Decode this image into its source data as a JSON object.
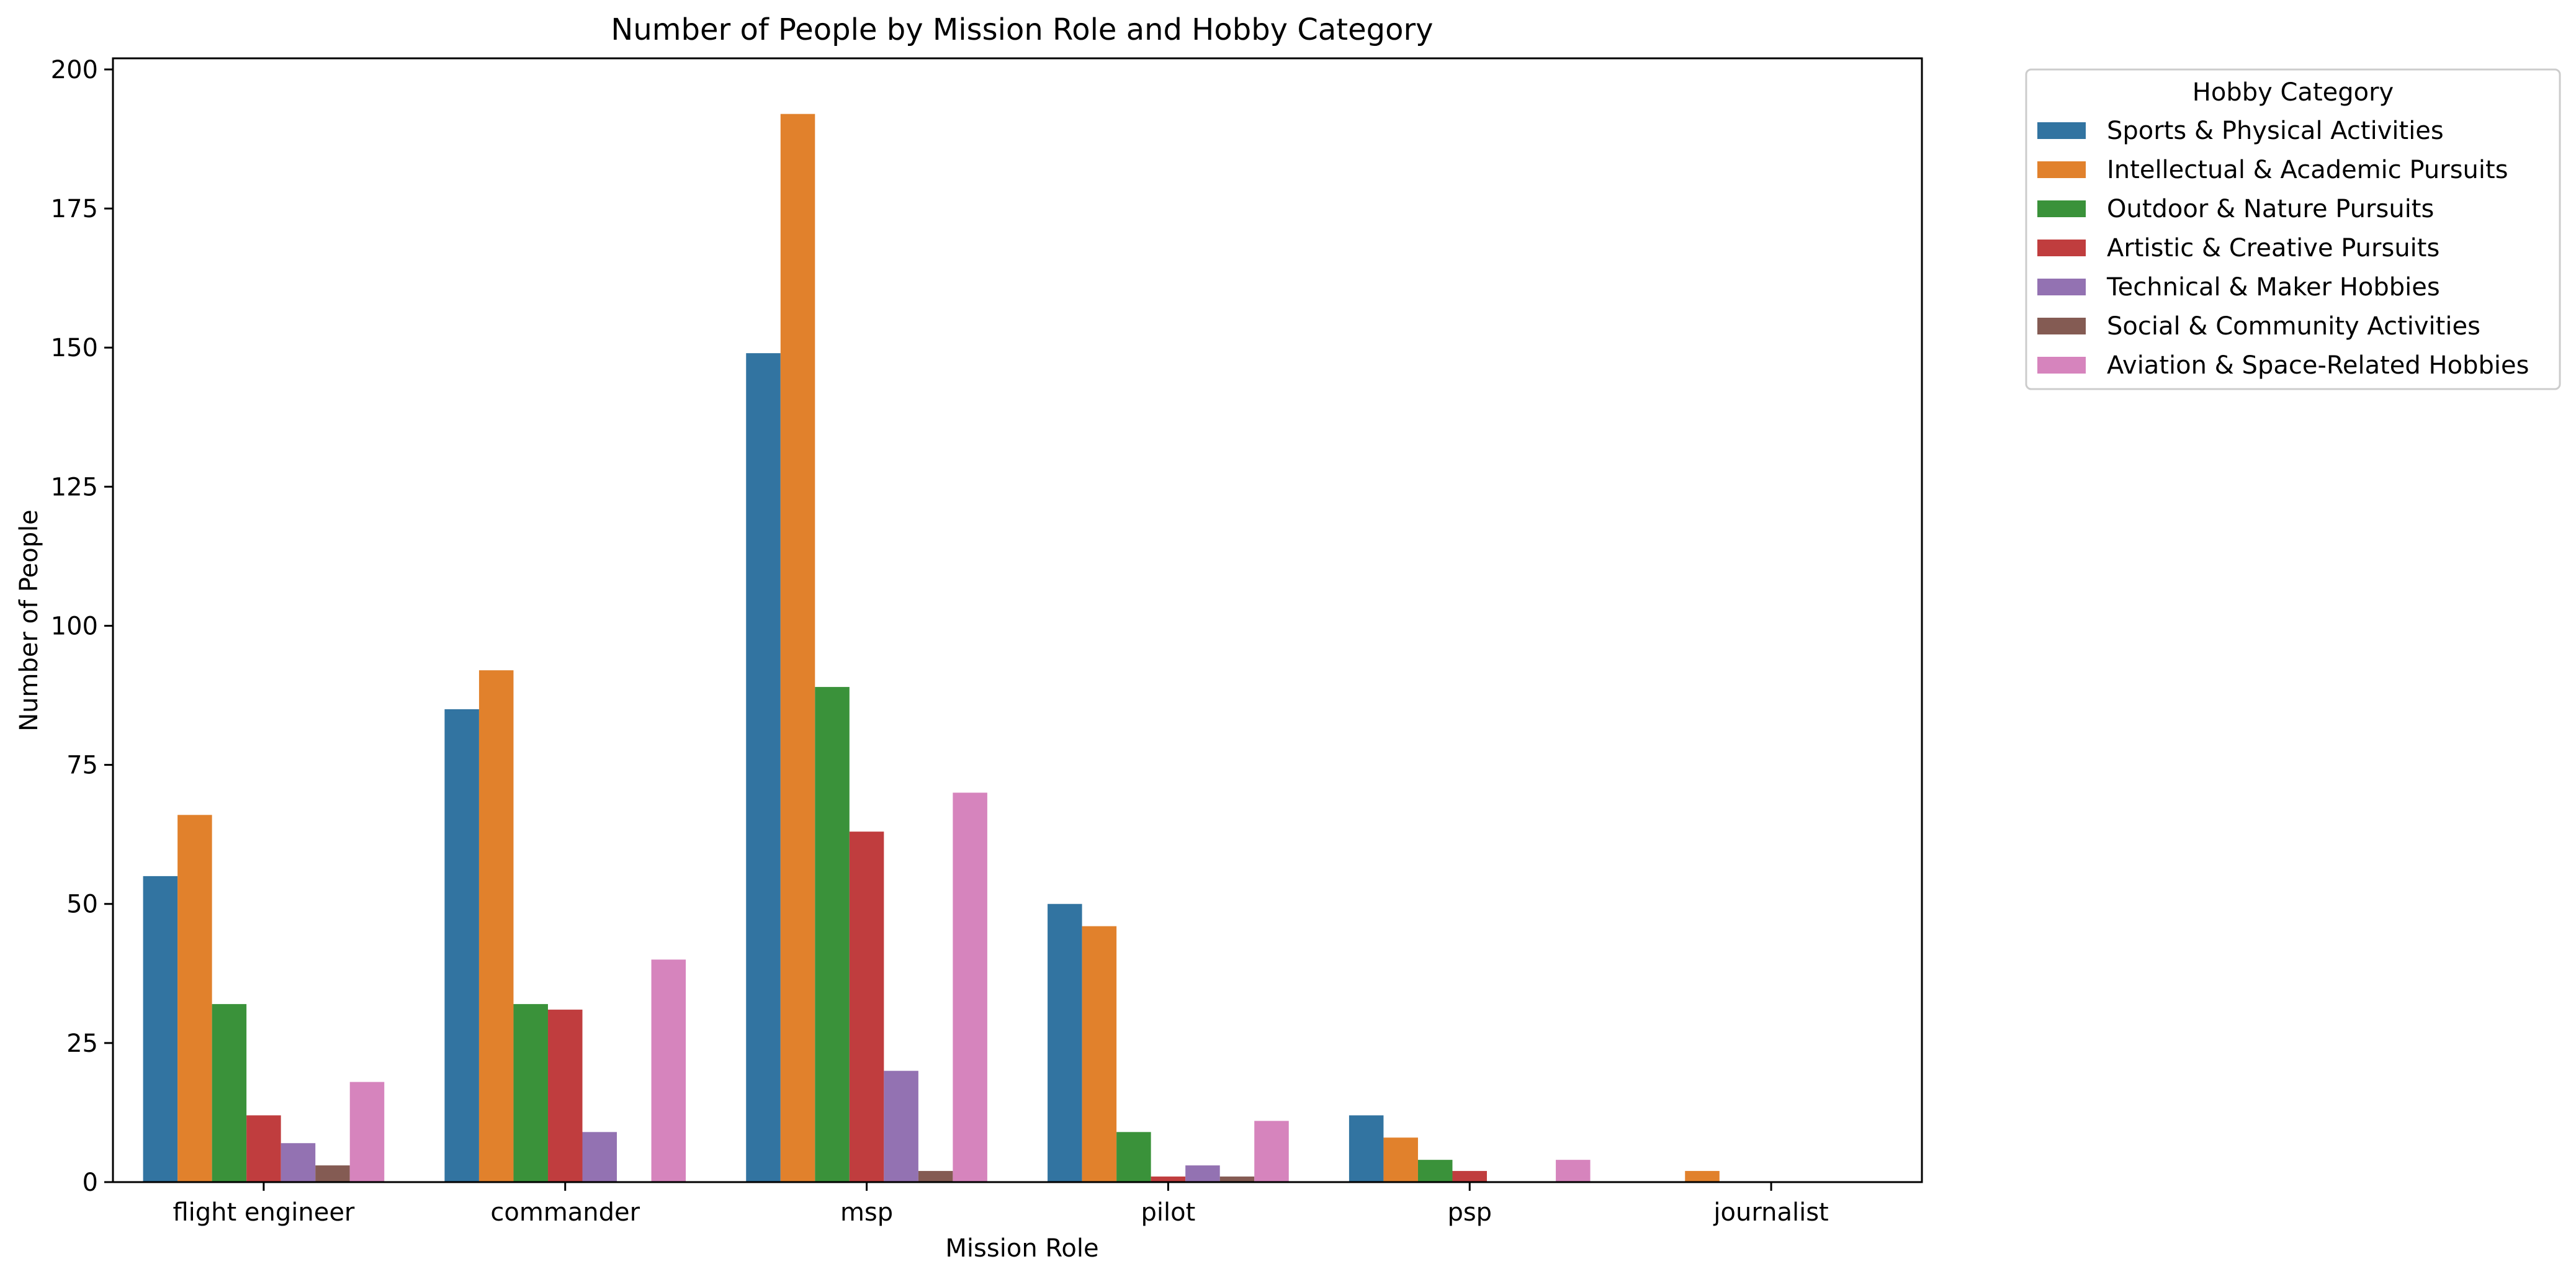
{
  "chart_data": {
    "type": "bar",
    "title": "Number of People by Mission Role and Hobby Category",
    "xlabel": "Mission Role",
    "ylabel": "Number of People",
    "ylim": [
      0,
      202
    ],
    "yticks": [
      0,
      25,
      50,
      75,
      100,
      125,
      150,
      175,
      200
    ],
    "categories": [
      "flight engineer",
      "commander",
      "msp",
      "pilot",
      "psp",
      "journalist"
    ],
    "grid": false,
    "legend": {
      "title": "Hobby Category",
      "placement": "outside-top-right"
    },
    "series": [
      {
        "name": "Sports & Physical Activities",
        "color": "#3274a1",
        "values": [
          55,
          85,
          149,
          50,
          12,
          0
        ]
      },
      {
        "name": "Intellectual & Academic Pursuits",
        "color": "#e1812c",
        "values": [
          66,
          92,
          192,
          46,
          8,
          2
        ]
      },
      {
        "name": "Outdoor & Nature Pursuits",
        "color": "#3a923a",
        "values": [
          32,
          32,
          89,
          9,
          4,
          0
        ]
      },
      {
        "name": "Artistic & Creative Pursuits",
        "color": "#c03d3e",
        "values": [
          12,
          31,
          63,
          1,
          2,
          0
        ]
      },
      {
        "name": "Technical & Maker Hobbies",
        "color": "#9372b2",
        "values": [
          7,
          9,
          20,
          3,
          0,
          0
        ]
      },
      {
        "name": "Social & Community Activities",
        "color": "#845b53",
        "values": [
          3,
          0,
          2,
          1,
          0,
          0
        ]
      },
      {
        "name": "Aviation & Space-Related Hobbies",
        "color": "#d684bd",
        "values": [
          18,
          40,
          70,
          11,
          4,
          0
        ]
      }
    ]
  }
}
